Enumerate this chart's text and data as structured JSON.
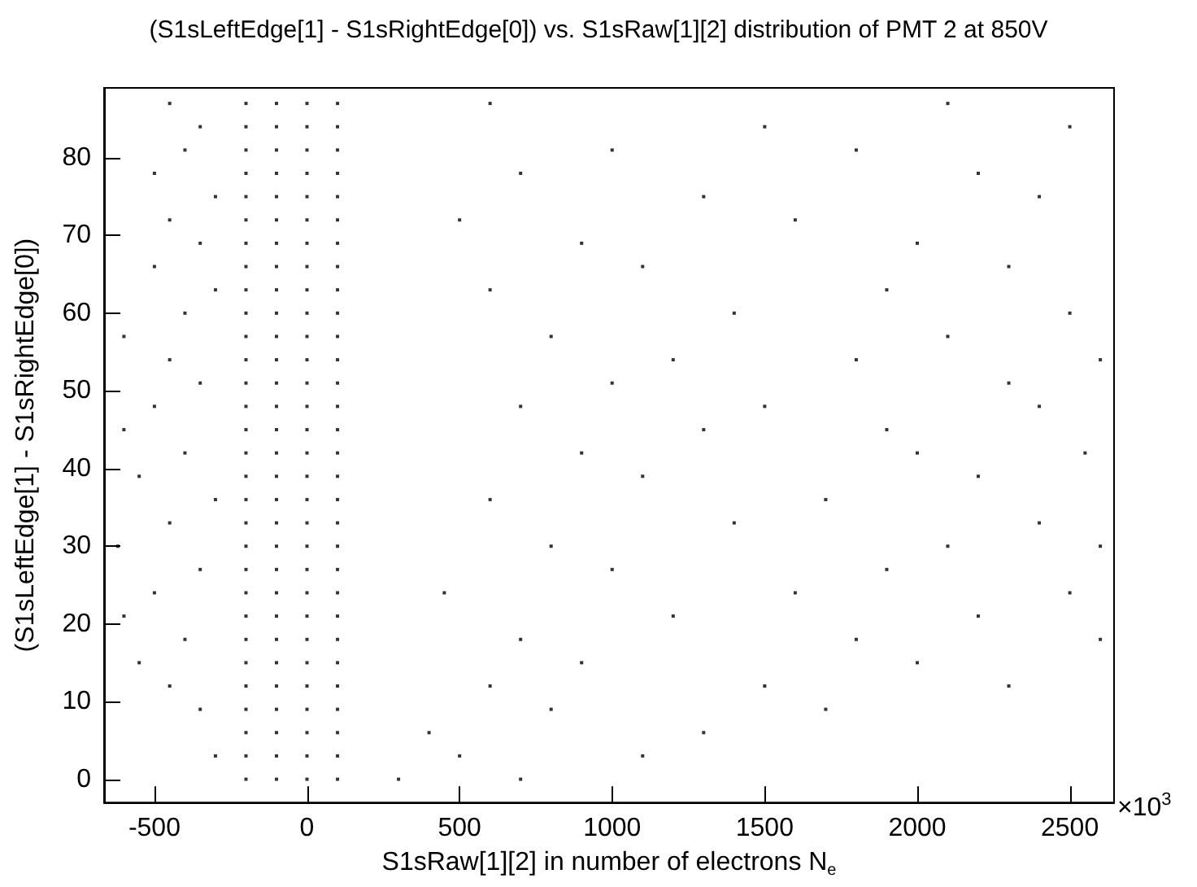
{
  "chart_data": {
    "type": "scatter",
    "title": "(S1sLeftEdge[1] - S1sRightEdge[0]) vs. S1sRaw[1][2] distribution of PMT 2 at 850V",
    "xlabel": "S1sRaw[1][2] in number of electrons N$_{e}$",
    "ylabel": "(S1sLeftEdge[1] - S1sRightEdge[0])",
    "annotations": [
      "×10$^{3}$"
    ],
    "xlim": [
      -665,
      2645
    ],
    "xticks": [
      -500,
      0,
      500,
      1000,
      1500,
      2000,
      2500
    ],
    "ylim": [
      -3,
      89
    ],
    "yticks": [
      0,
      10,
      20,
      30,
      40,
      50,
      60,
      70,
      80
    ],
    "marker": "square",
    "series": [
      {
        "color": "#000000",
        "x": [
          -200,
          -100,
          0,
          100,
          300,
          700,
          -200,
          -100,
          0,
          100,
          -300,
          500,
          1100,
          -200,
          -100,
          0,
          100,
          400,
          1300,
          -200,
          -100,
          0,
          100,
          -350,
          800,
          1700,
          -200,
          -100,
          0,
          100,
          -450,
          600,
          1500,
          2300,
          -200,
          -100,
          0,
          100,
          -550,
          900,
          2000,
          -200,
          -100,
          0,
          100,
          -400,
          700,
          1800,
          2600,
          -200,
          -100,
          0,
          100,
          -600,
          1200,
          2200,
          -200,
          -100,
          0,
          100,
          -500,
          450,
          1600,
          2500,
          -200,
          -100,
          0,
          100,
          -350,
          1000,
          1900,
          -200,
          -100,
          0,
          100,
          -620,
          800,
          2100,
          2600,
          -200,
          -100,
          0,
          100,
          -450,
          1400,
          2400,
          -200,
          -100,
          0,
          100,
          -300,
          600,
          1700,
          -200,
          -100,
          0,
          100,
          -550,
          1100,
          2200,
          -200,
          -100,
          0,
          100,
          -400,
          900,
          2000,
          2550,
          -200,
          -100,
          0,
          100,
          -600,
          1300,
          1900,
          -200,
          -100,
          0,
          100,
          -500,
          700,
          1500,
          2400,
          -200,
          -100,
          0,
          100,
          -350,
          1000,
          2300,
          -200,
          -100,
          0,
          100,
          -450,
          1200,
          1800,
          2600,
          -200,
          -100,
          0,
          100,
          -600,
          800,
          2100,
          -200,
          -100,
          0,
          100,
          -400,
          1400,
          2500,
          -200,
          -100,
          0,
          100,
          -300,
          600,
          1900,
          -200,
          -100,
          0,
          100,
          -500,
          1100,
          2300,
          -200,
          -100,
          0,
          100,
          -350,
          900,
          2000,
          -200,
          -100,
          0,
          100,
          -450,
          500,
          1600,
          -200,
          -100,
          0,
          100,
          -300,
          1300,
          2400,
          -200,
          -100,
          0,
          100,
          -500,
          700,
          2200,
          -200,
          -100,
          0,
          100,
          -400,
          1000,
          1800,
          -200,
          -100,
          0,
          100,
          -350,
          1500,
          2500,
          -200,
          -100,
          0,
          100,
          -450,
          600,
          2100
        ],
        "values": [
          0,
          0,
          0,
          0,
          0,
          0,
          3,
          3,
          3,
          3,
          3,
          3,
          3,
          6,
          6,
          6,
          6,
          6,
          6,
          9,
          9,
          9,
          9,
          9,
          9,
          9,
          12,
          12,
          12,
          12,
          12,
          12,
          12,
          12,
          15,
          15,
          15,
          15,
          15,
          15,
          15,
          18,
          18,
          18,
          18,
          18,
          18,
          18,
          18,
          21,
          21,
          21,
          21,
          21,
          21,
          21,
          24,
          24,
          24,
          24,
          24,
          24,
          24,
          24,
          27,
          27,
          27,
          27,
          27,
          27,
          27,
          30,
          30,
          30,
          30,
          30,
          30,
          30,
          30,
          33,
          33,
          33,
          33,
          33,
          33,
          33,
          36,
          36,
          36,
          36,
          36,
          36,
          36,
          39,
          39,
          39,
          39,
          39,
          39,
          39,
          42,
          42,
          42,
          42,
          42,
          42,
          42,
          42,
          45,
          45,
          45,
          45,
          45,
          45,
          45,
          48,
          48,
          48,
          48,
          48,
          48,
          48,
          48,
          51,
          51,
          51,
          51,
          51,
          51,
          51,
          54,
          54,
          54,
          54,
          54,
          54,
          54,
          54,
          57,
          57,
          57,
          57,
          57,
          57,
          57,
          60,
          60,
          60,
          60,
          60,
          60,
          60,
          63,
          63,
          63,
          63,
          63,
          63,
          63,
          66,
          66,
          66,
          66,
          66,
          66,
          66,
          69,
          69,
          69,
          69,
          69,
          69,
          69,
          72,
          72,
          72,
          72,
          72,
          72,
          72,
          75,
          75,
          75,
          75,
          75,
          75,
          75,
          78,
          78,
          78,
          78,
          78,
          78,
          78,
          81,
          81,
          81,
          81,
          81,
          81,
          81,
          84,
          84,
          84,
          84,
          84,
          84,
          84,
          87,
          87,
          87,
          87,
          87,
          87,
          87
        ]
      }
    ]
  }
}
